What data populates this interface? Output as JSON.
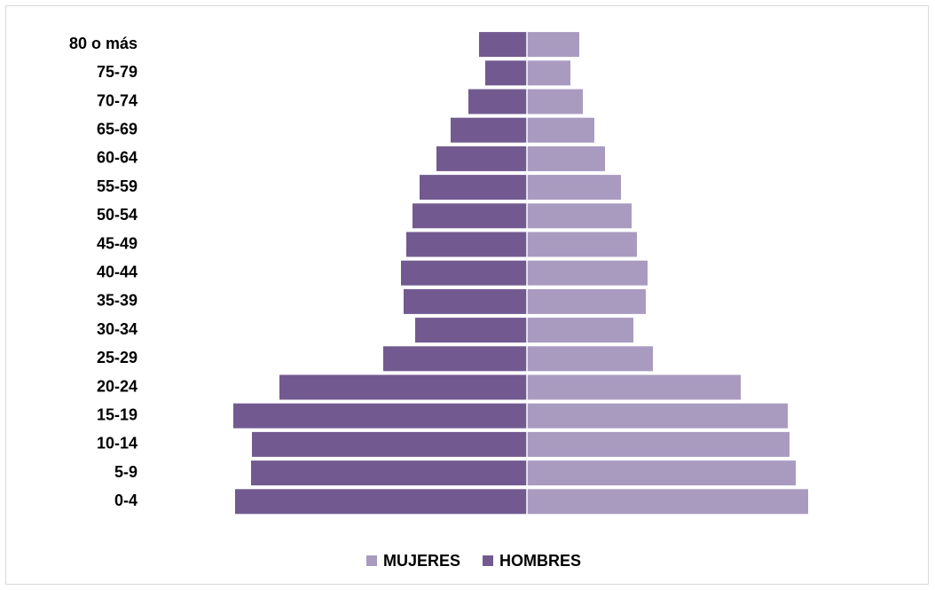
{
  "chart_data": {
    "type": "pyramid",
    "categories": [
      "80 o más",
      "75-79",
      "70-74",
      "65-69",
      "60-64",
      "55-59",
      "50-54",
      "45-49",
      "40-44",
      "35-39",
      "30-34",
      "25-29",
      "20-24",
      "15-19",
      "10-14",
      "5-9",
      "0-4"
    ],
    "series": [
      {
        "name": "MUJERES",
        "color": "#a99bc0",
        "values": [
          59,
          49,
          63,
          76,
          88,
          106,
          118,
          124,
          136,
          134,
          120,
          142,
          241,
          294,
          296,
          303,
          317
        ]
      },
      {
        "name": "HOMBRES",
        "color": "#725a91",
        "values": [
          54,
          47,
          66,
          86,
          102,
          121,
          129,
          136,
          142,
          139,
          126,
          162,
          279,
          331,
          310,
          311,
          329
        ]
      }
    ],
    "legend": "bottom"
  }
}
